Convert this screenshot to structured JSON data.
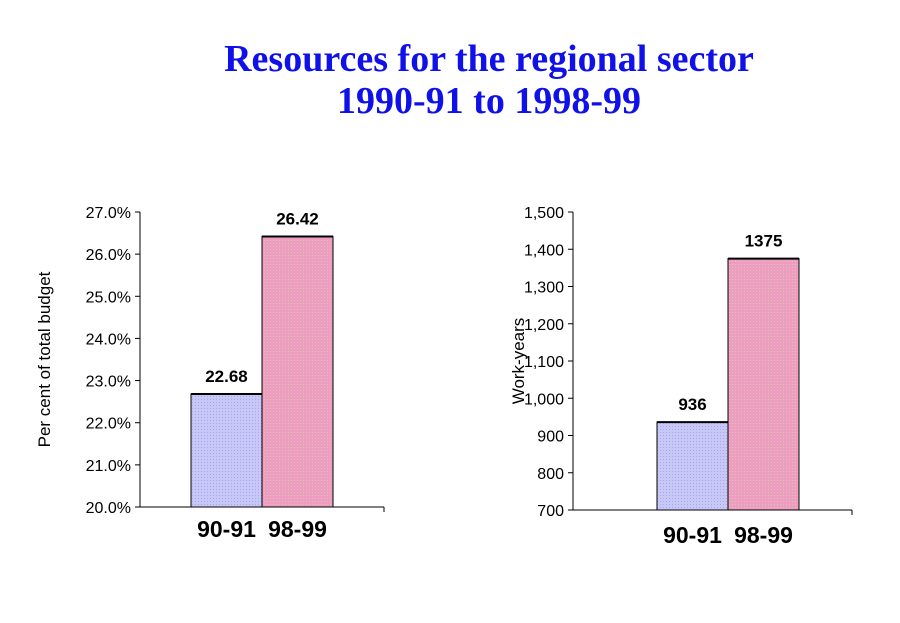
{
  "title_line1": "Resources for the regional sector",
  "title_line2": "1990-91 to 1998-99",
  "colors": {
    "bar1": "#c4c4f4",
    "bar2": "#ea9cbf",
    "title": "#1010e8"
  },
  "chart_data": [
    {
      "type": "bar",
      "ylabel": "Per cent of total budget",
      "categories": [
        "90-91",
        "98-99"
      ],
      "values": [
        22.68,
        26.42
      ],
      "data_labels": [
        "22.68",
        "26.42"
      ],
      "ylim": [
        20,
        27
      ],
      "ticks": [
        "20.0%",
        "21.0%",
        "22.0%",
        "23.0%",
        "24.0%",
        "25.0%",
        "26.0%",
        "27.0%"
      ],
      "tick_values": [
        20,
        21,
        22,
        23,
        24,
        25,
        26,
        27
      ]
    },
    {
      "type": "bar",
      "ylabel": "Work-years",
      "categories": [
        "90-91",
        "98-99"
      ],
      "values": [
        936,
        1375
      ],
      "data_labels": [
        "936",
        "1375"
      ],
      "ylim": [
        700,
        1500
      ],
      "ticks": [
        "700",
        "800",
        "900",
        "1,000",
        "1,100",
        "1,200",
        "1,300",
        "1,400",
        "1,500"
      ],
      "tick_values": [
        700,
        800,
        900,
        1000,
        1100,
        1200,
        1300,
        1400,
        1500
      ]
    }
  ]
}
